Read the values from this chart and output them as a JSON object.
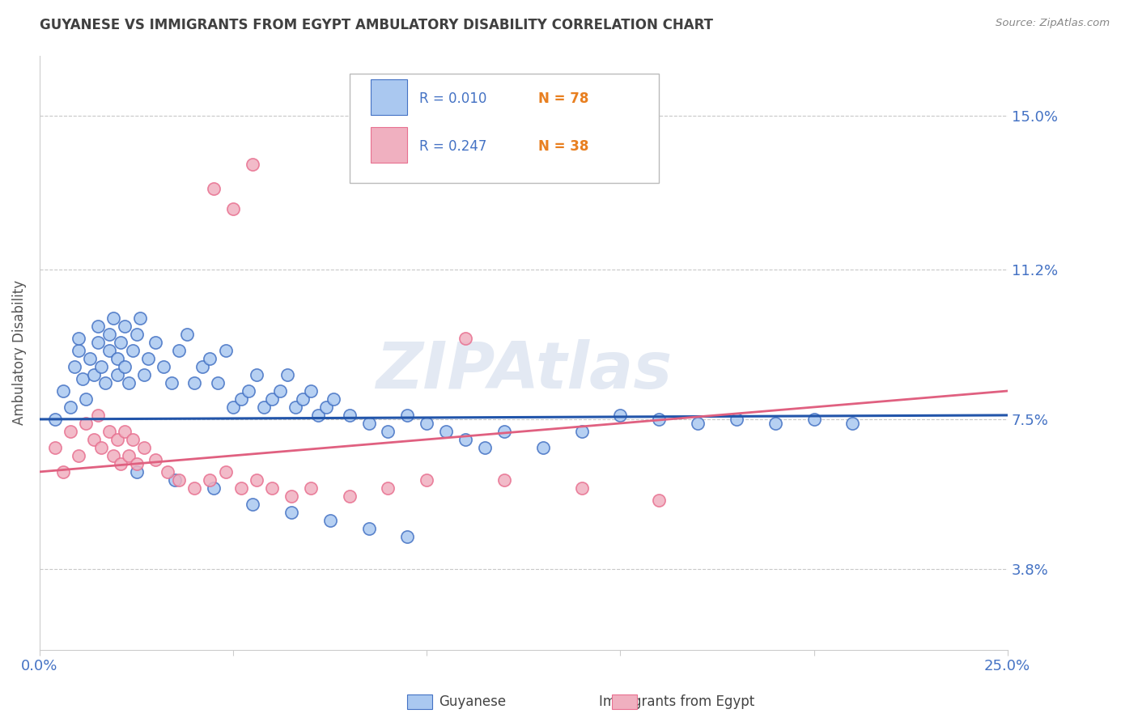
{
  "title": "GUYANESE VS IMMIGRANTS FROM EGYPT AMBULATORY DISABILITY CORRELATION CHART",
  "source": "Source: ZipAtlas.com",
  "ylabel": "Ambulatory Disability",
  "xlim": [
    0.0,
    0.25
  ],
  "ylim": [
    0.018,
    0.165
  ],
  "ytick_positions": [
    0.038,
    0.075,
    0.112,
    0.15
  ],
  "ytick_labels": [
    "3.8%",
    "7.5%",
    "11.2%",
    "15.0%"
  ],
  "grid_color": "#c8c8c8",
  "background_color": "#ffffff",
  "guyanese_color": "#aac8f0",
  "egypt_color": "#f0b0c0",
  "guyanese_edge_color": "#4472c4",
  "egypt_edge_color": "#e87090",
  "guyanese_line_color": "#2255aa",
  "egypt_line_color": "#e06080",
  "legend_R1": "R = 0.010",
  "legend_N1": "N = 78",
  "legend_R2": "R = 0.247",
  "legend_N2": "N = 38",
  "legend_label1": "Guyanese",
  "legend_label2": "Immigrants from Egypt",
  "title_color": "#404040",
  "axis_label_color": "#555555",
  "tick_label_color": "#4472c4",
  "R_text_color": "#4472c4",
  "N_text_color": "#e87f20",
  "guyanese_x": [
    0.004,
    0.006,
    0.008,
    0.009,
    0.01,
    0.01,
    0.011,
    0.012,
    0.013,
    0.014,
    0.015,
    0.015,
    0.016,
    0.017,
    0.018,
    0.018,
    0.019,
    0.02,
    0.02,
    0.021,
    0.022,
    0.022,
    0.023,
    0.024,
    0.025,
    0.026,
    0.027,
    0.028,
    0.03,
    0.032,
    0.034,
    0.036,
    0.038,
    0.04,
    0.042,
    0.044,
    0.046,
    0.048,
    0.05,
    0.052,
    0.054,
    0.056,
    0.058,
    0.06,
    0.062,
    0.064,
    0.066,
    0.068,
    0.07,
    0.072,
    0.074,
    0.076,
    0.08,
    0.085,
    0.09,
    0.095,
    0.1,
    0.105,
    0.11,
    0.115,
    0.12,
    0.13,
    0.14,
    0.15,
    0.16,
    0.17,
    0.18,
    0.19,
    0.2,
    0.21,
    0.025,
    0.035,
    0.045,
    0.055,
    0.065,
    0.075,
    0.085,
    0.095
  ],
  "guyanese_y": [
    0.075,
    0.082,
    0.078,
    0.088,
    0.092,
    0.095,
    0.085,
    0.08,
    0.09,
    0.086,
    0.094,
    0.098,
    0.088,
    0.084,
    0.092,
    0.096,
    0.1,
    0.086,
    0.09,
    0.094,
    0.098,
    0.088,
    0.084,
    0.092,
    0.096,
    0.1,
    0.086,
    0.09,
    0.094,
    0.088,
    0.084,
    0.092,
    0.096,
    0.084,
    0.088,
    0.09,
    0.084,
    0.092,
    0.078,
    0.08,
    0.082,
    0.086,
    0.078,
    0.08,
    0.082,
    0.086,
    0.078,
    0.08,
    0.082,
    0.076,
    0.078,
    0.08,
    0.076,
    0.074,
    0.072,
    0.076,
    0.074,
    0.072,
    0.07,
    0.068,
    0.072,
    0.068,
    0.072,
    0.076,
    0.075,
    0.074,
    0.075,
    0.074,
    0.075,
    0.074,
    0.062,
    0.06,
    0.058,
    0.054,
    0.052,
    0.05,
    0.048,
    0.046
  ],
  "egypt_x": [
    0.004,
    0.006,
    0.008,
    0.01,
    0.012,
    0.014,
    0.015,
    0.016,
    0.018,
    0.019,
    0.02,
    0.021,
    0.022,
    0.023,
    0.024,
    0.025,
    0.027,
    0.03,
    0.033,
    0.036,
    0.04,
    0.044,
    0.048,
    0.052,
    0.056,
    0.06,
    0.065,
    0.07,
    0.08,
    0.09,
    0.1,
    0.12,
    0.14,
    0.16,
    0.045,
    0.05,
    0.055,
    0.11
  ],
  "egypt_y": [
    0.068,
    0.062,
    0.072,
    0.066,
    0.074,
    0.07,
    0.076,
    0.068,
    0.072,
    0.066,
    0.07,
    0.064,
    0.072,
    0.066,
    0.07,
    0.064,
    0.068,
    0.065,
    0.062,
    0.06,
    0.058,
    0.06,
    0.062,
    0.058,
    0.06,
    0.058,
    0.056,
    0.058,
    0.056,
    0.058,
    0.06,
    0.06,
    0.058,
    0.055,
    0.132,
    0.127,
    0.138,
    0.095
  ],
  "guyanese_trend_x": [
    0.0,
    0.25
  ],
  "guyanese_trend_y": [
    0.075,
    0.076
  ],
  "egypt_trend_x": [
    0.0,
    0.25
  ],
  "egypt_trend_y": [
    0.062,
    0.082
  ]
}
